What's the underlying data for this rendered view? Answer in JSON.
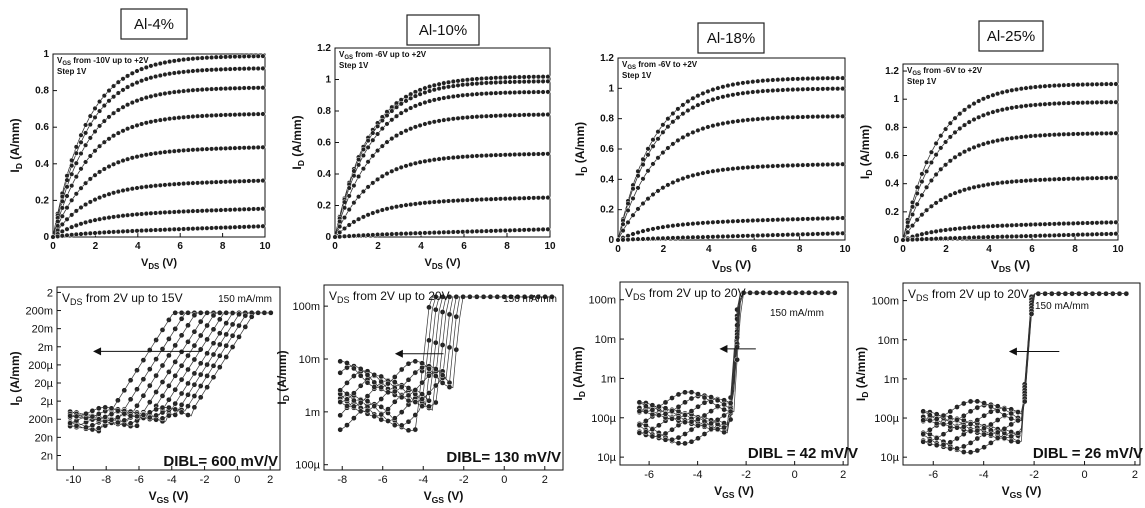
{
  "chart_data": [
    {
      "type": "line",
      "panel_title": "Al-4%",
      "annotation": "VGS from -10V up to +2V",
      "annotation2": "Step 1V",
      "xlabel": "VDS (V)",
      "ylabel": "ID (A/mm)",
      "xlim": [
        0,
        10
      ],
      "ylim": [
        0,
        1.0
      ],
      "xticks": [
        0,
        2,
        4,
        6,
        8,
        10
      ],
      "yticks": [
        0,
        0.2,
        0.4,
        0.6,
        0.8,
        1
      ],
      "ytick_labels": [
        "0",
        "0.2",
        "0.4",
        "0.6",
        "0.8",
        "1"
      ],
      "series": [
        {
          "vt": -1.0,
          "isat": 0.99,
          "vk": 6
        },
        {
          "vt": -1.4,
          "isat": 0.92,
          "vk": 6
        },
        {
          "vt": -2.2,
          "isat": 0.81,
          "vk": 7
        },
        {
          "vt": -3.2,
          "isat": 0.66,
          "vk": 8
        },
        {
          "vt": -4.5,
          "isat": 0.47,
          "vk": 10
        },
        {
          "vt": -5.8,
          "isat": 0.28,
          "vk": 12
        },
        {
          "vt": -7.2,
          "isat": 0.12,
          "vk": 14
        },
        {
          "vt": -8.5,
          "isat": 0.02,
          "vk": 14
        }
      ]
    },
    {
      "type": "line",
      "panel_title": "Al-10%",
      "annotation": "VGS from -6V up to +2V",
      "annotation2": "Step 1V",
      "xlabel": "VDS (V)",
      "ylabel": "ID (A/mm)",
      "xlim": [
        0,
        10
      ],
      "ylim": [
        0,
        1.2
      ],
      "xticks": [
        0,
        2,
        4,
        6,
        8,
        10
      ],
      "yticks": [
        0,
        0.2,
        0.4,
        0.6,
        0.8,
        1,
        1.2
      ],
      "ytick_labels": [
        "0",
        "0.2",
        "0.4",
        "0.6",
        "0.8",
        "1",
        "1.2"
      ],
      "series": [
        {
          "vt": -1.0,
          "isat": 1.02,
          "vk": 3.5
        },
        {
          "vt": -1.3,
          "isat": 0.99,
          "vk": 3.5
        },
        {
          "vt": -1.6,
          "isat": 0.92,
          "vk": 4
        },
        {
          "vt": -2.5,
          "isat": 0.77,
          "vk": 4.5
        },
        {
          "vt": -3.5,
          "isat": 0.51,
          "vk": 6
        },
        {
          "vt": -5.0,
          "isat": 0.22,
          "vk": 14
        },
        {
          "vt": -6.0,
          "isat": 0.01,
          "vk": 14
        }
      ]
    },
    {
      "type": "line",
      "panel_title": "Al-18%",
      "annotation": "VGS from -6V to +2V",
      "annotation2": "Step 1V",
      "xlabel": "VDS (V)",
      "ylabel": "ID (A/mm)",
      "xlim": [
        0,
        10
      ],
      "ylim": [
        0,
        1.2
      ],
      "xticks": [
        0,
        2,
        4,
        6,
        8,
        10
      ],
      "yticks": [
        0,
        0.2,
        0.4,
        0.6,
        0.8,
        1,
        1.2
      ],
      "ytick_labels": [
        "0",
        "0.2",
        "0.4",
        "0.6",
        "0.8",
        "1",
        "1.2"
      ],
      "series": [
        {
          "vt": -1.0,
          "isat": 1.07,
          "vk": 3
        },
        {
          "vt": -1.3,
          "isat": 1.0,
          "vk": 3
        },
        {
          "vt": -1.8,
          "isat": 0.81,
          "vk": 2.5
        },
        {
          "vt": -3.0,
          "isat": 0.48,
          "vk": 2
        },
        {
          "vt": -5.0,
          "isat": 0.11,
          "vk": 14
        },
        {
          "vt": -6.0,
          "isat": 0.005,
          "vk": 14
        }
      ]
    },
    {
      "type": "line",
      "panel_title": "Al-25%",
      "annotation": "VGS from -6V to +2V",
      "annotation2": "Step 1V",
      "xlabel": "VDS (V)",
      "ylabel": "ID (A/mm)",
      "xlim": [
        0,
        10
      ],
      "ylim": [
        0,
        1.25
      ],
      "xticks": [
        0,
        2,
        4,
        6,
        8,
        10
      ],
      "yticks": [
        0,
        0.2,
        0.4,
        0.6,
        0.8,
        1,
        1.2
      ],
      "ytick_labels": [
        "0",
        "0.2",
        "0.4",
        "0.6",
        "0.8",
        "1",
        "1.2"
      ],
      "series": [
        {
          "vt": -1.0,
          "isat": 1.11,
          "vk": 3.5
        },
        {
          "vt": -1.3,
          "isat": 0.98,
          "vk": 3.5
        },
        {
          "vt": -1.8,
          "isat": 0.75,
          "vk": 3
        },
        {
          "vt": -3.0,
          "isat": 0.42,
          "vk": 2.5
        },
        {
          "vt": -5.0,
          "isat": 0.09,
          "vk": 14
        },
        {
          "vt": -6.0,
          "isat": 0.005,
          "vk": 14
        }
      ]
    },
    {
      "type": "scatter",
      "annotation": "VDS from 2V up to 15V",
      "level_label": "150 mA/mm",
      "dibl": "DIBL= 600 mV/V",
      "xlabel": "VGS (V)",
      "ylabel": "ID (A/mm)",
      "xlim": [
        -11,
        2.6
      ],
      "ylim_log10": [
        -9.5,
        0.6
      ],
      "xticks": [
        -10,
        -8,
        -6,
        -4,
        -2,
        0,
        2
      ],
      "yticks_log10": [
        0.301,
        -0.699,
        -1.699,
        -2.699,
        -3.699,
        -4.699,
        -5.699,
        -6.699,
        -7.699,
        -8.699
      ],
      "ytick_labels": [
        "2",
        "200m",
        "20m",
        "2m",
        "200µ",
        "20µ",
        "2µ",
        "200n",
        "20n",
        "2n"
      ],
      "vth": [
        -8.3,
        -7.5,
        -6.8,
        -6.1,
        -5.5,
        -4.9,
        -4.3,
        -3.8,
        -3.3,
        -2.8
      ],
      "ion": 0.15,
      "ioff": 2e-07,
      "ss": 0.7
    },
    {
      "type": "scatter",
      "annotation": "VDS from 2V up to 20V",
      "level_label": "150 mA/mm",
      "dibl": "DIBL= 130 mV/V",
      "xlabel": "VGS (V)",
      "ylabel": "ID (A/mm)",
      "xlim": [
        -8.9,
        2.9
      ],
      "ylim_log10": [
        -4.1,
        -0.6
      ],
      "xticks": [
        -8,
        -6,
        -4,
        -2,
        0,
        2
      ],
      "yticks_log10": [
        -1,
        -2,
        -3,
        -4
      ],
      "ytick_labels": [
        "100m",
        "10m",
        "1m",
        "100µ"
      ],
      "vth": [
        -4.3,
        -4.1,
        -3.9,
        -3.7,
        -3.5,
        -3.3,
        -3.1,
        -2.9,
        -2.7,
        -2.5
      ],
      "ion": 0.15,
      "ioff": 0.002,
      "ss": 0.28
    },
    {
      "type": "scatter",
      "annotation": "VDS from 2V up to 20V",
      "level_label": "150 mA/mm",
      "dibl": "DIBL = 42 mV/V",
      "xlabel": "VGS (V)",
      "ylabel": "ID (A/mm)",
      "xlim": [
        -7.2,
        2.2
      ],
      "ylim_log10": [
        -5.2,
        -0.55
      ],
      "xticks": [
        -6,
        -4,
        -2,
        0,
        2
      ],
      "yticks_log10": [
        -1,
        -2,
        -3,
        -4,
        -5
      ],
      "ytick_labels": [
        "100m",
        "10m",
        "1m",
        "100µ",
        "10µ"
      ],
      "vth": [
        -2.75,
        -2.72,
        -2.7,
        -2.67,
        -2.64,
        -2.62,
        -2.6,
        -2.57,
        -2.55,
        -2.5
      ],
      "ion": 0.15,
      "ioff": 0.0001,
      "ss": 0.12
    },
    {
      "type": "scatter",
      "annotation": "VDS from 2V up to 20V",
      "level_label": "150 mA/mm",
      "dibl": "DIBL = 26 mV/V",
      "xlabel": "VGS (V)",
      "ylabel": "ID (A/mm)",
      "xlim": [
        -7.2,
        2.2
      ],
      "ylim_log10": [
        -5.2,
        -0.55
      ],
      "xticks": [
        -6,
        -4,
        -2,
        0,
        2
      ],
      "yticks_log10": [
        -1,
        -2,
        -3,
        -4,
        -5
      ],
      "ytick_labels": [
        "100m",
        "10m",
        "1m",
        "100µ",
        "10µ"
      ],
      "vth": [
        -2.55,
        -2.53,
        -2.52,
        -2.5,
        -2.48,
        -2.47,
        -2.45,
        -2.43,
        -2.42,
        -2.4
      ],
      "ion": 0.15,
      "ioff": 6e-05,
      "ss": 0.12
    }
  ]
}
